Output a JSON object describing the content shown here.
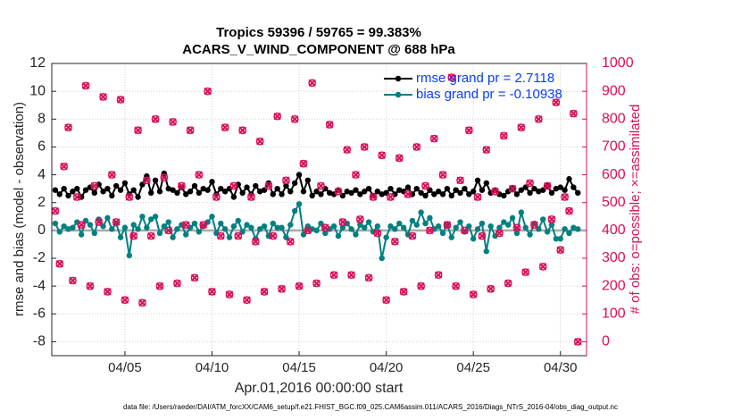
{
  "chart_data": {
    "type": "line",
    "title": "Tropics 59396 / 59765 = 99.383%",
    "subtitle": "ACARS_V_WIND_COMPONENT @ 688 hPa",
    "xlabel": "Apr.01,2016 00:00:00 start",
    "ylabel": "rmse and bias (model - observation)",
    "y2label": "# of obs: o=possible; ×=assimilated",
    "footnote": "data file: /Users/raeder/DAI/ATM_forcXX/CAM6_setup/f.e21.FHIST_BGC.f09_025.CAM6assim.011/ACARS_2016/Diags_NTrS_2016-04/obs_diag_output.nc",
    "xlim": [
      0.8,
      31.5
    ],
    "xticks": [
      {
        "value": 5,
        "label": "04/05"
      },
      {
        "value": 10,
        "label": "04/10"
      },
      {
        "value": 15,
        "label": "04/15"
      },
      {
        "value": 20,
        "label": "04/20"
      },
      {
        "value": 25,
        "label": "04/25"
      },
      {
        "value": 30,
        "label": "04/30"
      }
    ],
    "ylim": [
      -9,
      12
    ],
    "yticks": [
      -8,
      -6,
      -4,
      -2,
      0,
      2,
      4,
      6,
      8,
      10,
      12
    ],
    "y2lim": [
      -50,
      1000
    ],
    "y2ticks": [
      0,
      100,
      200,
      300,
      400,
      500,
      600,
      700,
      800,
      900,
      1000
    ],
    "grid": true,
    "legend": "northeast",
    "zero_line_color": "#aaaaaa",
    "y2color": "#d6115a",
    "x": [
      1,
      1.25,
      1.5,
      1.75,
      2,
      2.25,
      2.5,
      2.75,
      3,
      3.25,
      3.5,
      3.75,
      4,
      4.25,
      4.5,
      4.75,
      5,
      5.25,
      5.5,
      5.75,
      6,
      6.25,
      6.5,
      6.75,
      7,
      7.25,
      7.5,
      7.75,
      8,
      8.25,
      8.5,
      8.75,
      9,
      9.25,
      9.5,
      9.75,
      10,
      10.25,
      10.5,
      10.75,
      11,
      11.25,
      11.5,
      11.75,
      12,
      12.25,
      12.5,
      12.75,
      13,
      13.25,
      13.5,
      13.75,
      14,
      14.25,
      14.5,
      14.75,
      15,
      15.25,
      15.5,
      15.75,
      16,
      16.25,
      16.5,
      16.75,
      17,
      17.25,
      17.5,
      17.75,
      18,
      18.25,
      18.5,
      18.75,
      19,
      19.25,
      19.5,
      19.75,
      20,
      20.25,
      20.5,
      20.75,
      21,
      21.25,
      21.5,
      21.75,
      22,
      22.25,
      22.5,
      22.75,
      23,
      23.25,
      23.5,
      23.75,
      24,
      24.25,
      24.5,
      24.75,
      25,
      25.25,
      25.5,
      25.75,
      26,
      26.25,
      26.5,
      26.75,
      27,
      27.25,
      27.5,
      27.75,
      28,
      28.25,
      28.5,
      28.75,
      29,
      29.25,
      29.5,
      29.75,
      30,
      30.25,
      30.5,
      30.75,
      31
    ],
    "series": [
      {
        "name": "rmse grand pr = 2.7118",
        "color": "#000000",
        "marker": "dot",
        "linestyle": "solid",
        "in_legend": true,
        "values": [
          2.9,
          2.6,
          3.0,
          2.5,
          2.8,
          3.0,
          2.4,
          2.9,
          3.1,
          2.7,
          3.3,
          2.8,
          3.0,
          2.5,
          3.2,
          2.9,
          3.4,
          2.6,
          2.9,
          2.4,
          3.3,
          3.9,
          2.7,
          3.6,
          2.8,
          4.1,
          3.0,
          2.9,
          2.7,
          3.1,
          2.6,
          2.8,
          3.2,
          2.7,
          3.0,
          2.9,
          3.5,
          2.6,
          3.0,
          2.8,
          3.0,
          2.4,
          3.3,
          2.7,
          3.1,
          2.6,
          3.2,
          2.8,
          2.9,
          3.4,
          2.6,
          3.0,
          2.6,
          3.2,
          2.8,
          3.4,
          4.0,
          2.8,
          3.6,
          2.5,
          2.8,
          2.6,
          3.0,
          2.7,
          2.6,
          2.9,
          2.5,
          2.8,
          2.7,
          2.9,
          2.6,
          2.8,
          3.0,
          2.5,
          2.8,
          2.6,
          2.7,
          3.0,
          2.6,
          2.9,
          2.8,
          3.1,
          2.6,
          3.0,
          2.7,
          2.5,
          2.9,
          2.6,
          2.8,
          2.6,
          3.0,
          2.5,
          2.9,
          2.7,
          3.0,
          2.6,
          2.8,
          3.6,
          2.9,
          3.4,
          2.7,
          2.9,
          2.6,
          2.5,
          2.8,
          3.0,
          2.6,
          2.9,
          3.1,
          2.7,
          3.0,
          2.8,
          2.9,
          3.2,
          2.7,
          3.0,
          3.1,
          2.9,
          3.7,
          3.1,
          2.7
        ]
      },
      {
        "name": "bias grand pr = -0.10938",
        "color": "#008080",
        "marker": "dot",
        "linestyle": "solid",
        "in_legend": true,
        "values": [
          0.5,
          -0.1,
          0.3,
          0.1,
          0.2,
          0.6,
          -0.3,
          0.7,
          0.4,
          -0.2,
          0.8,
          0.3,
          0.9,
          0.1,
          0.5,
          -0.5,
          0.2,
          -1.8,
          0.4,
          0.1,
          1.0,
          0.2,
          0.8,
          1.0,
          -0.2,
          0.3,
          0.6,
          -0.5,
          0.1,
          0.4,
          -0.3,
          0.2,
          0.5,
          -0.1,
          0.3,
          0.6,
          1.0,
          -0.2,
          0.5,
          0.1,
          -0.5,
          0.3,
          0.7,
          -0.1,
          0.4,
          0.2,
          -0.6,
          0.1,
          0.3,
          -0.4,
          0.5,
          0.2,
          0.2,
          -0.5,
          0.4,
          1.4,
          1.9,
          -0.3,
          0.3,
          0.1,
          0.0,
          0.5,
          -0.2,
          0.1,
          0.3,
          -0.4,
          0.2,
          0.5,
          0.1,
          -0.3,
          0.4,
          0.2,
          0.6,
          -0.1,
          0.3,
          -2.0,
          -0.5,
          0.3,
          0.1,
          0.5,
          0.2,
          -0.3,
          0.7,
          0.4,
          1.3,
          0.5,
          0.9,
          0.1,
          0.3,
          -0.2,
          0.4,
          -0.5,
          0.2,
          0.6,
          -0.1,
          0.3,
          -0.6,
          0.1,
          0.5,
          -1.5,
          0.3,
          -0.4,
          0.2,
          0.6,
          0.4,
          0.9,
          -0.2,
          1.3,
          0.2,
          -0.3,
          0.5,
          0.1,
          0.8,
          -0.1,
          0.4,
          -0.6,
          -0.6,
          0.1,
          -0.2,
          0.2,
          0.1
        ]
      },
      {
        "name": "possible",
        "color": "#d6115a",
        "marker": "circle",
        "linestyle": "none",
        "axis": "y2",
        "in_legend": false,
        "values": [
          470,
          280,
          630,
          770,
          220,
          520,
          420,
          920,
          200,
          560,
          430,
          880,
          180,
          600,
          430,
          870,
          150,
          520,
          380,
          760,
          140,
          580,
          380,
          800,
          200,
          590,
          400,
          790,
          210,
          560,
          420,
          760,
          230,
          600,
          420,
          900,
          180,
          520,
          380,
          770,
          170,
          560,
          380,
          760,
          150,
          520,
          360,
          720,
          180,
          560,
          380,
          810,
          190,
          580,
          360,
          800,
          200,
          640,
          400,
          930,
          210,
          560,
          410,
          780,
          240,
          540,
          430,
          690,
          240,
          600,
          440,
          700,
          230,
          520,
          390,
          670,
          150,
          520,
          360,
          660,
          180,
          530,
          380,
          700,
          200,
          560,
          400,
          730,
          240,
          600,
          420,
          950,
          200,
          580,
          400,
          760,
          170,
          520,
          380,
          690,
          190,
          540,
          390,
          740,
          210,
          550,
          410,
          770,
          250,
          570,
          420,
          800,
          270,
          560,
          440,
          860,
          330,
          520,
          470,
          820,
          0
        ]
      },
      {
        "name": "assimilated",
        "color": "#d6115a",
        "marker": "cross",
        "linestyle": "none",
        "axis": "y2",
        "in_legend": false,
        "values": [
          470,
          280,
          630,
          770,
          220,
          520,
          420,
          920,
          200,
          560,
          430,
          880,
          180,
          600,
          430,
          870,
          150,
          520,
          380,
          760,
          140,
          580,
          380,
          800,
          200,
          590,
          400,
          790,
          210,
          560,
          420,
          760,
          230,
          600,
          420,
          900,
          180,
          520,
          380,
          770,
          170,
          560,
          380,
          760,
          150,
          520,
          360,
          720,
          180,
          560,
          380,
          810,
          190,
          580,
          360,
          800,
          200,
          640,
          400,
          930,
          210,
          560,
          410,
          780,
          240,
          540,
          430,
          690,
          240,
          600,
          440,
          700,
          230,
          520,
          390,
          670,
          150,
          520,
          360,
          660,
          180,
          530,
          380,
          700,
          200,
          560,
          400,
          730,
          240,
          600,
          420,
          950,
          200,
          580,
          400,
          760,
          170,
          520,
          380,
          690,
          190,
          540,
          390,
          740,
          210,
          550,
          410,
          770,
          250,
          570,
          420,
          800,
          270,
          560,
          440,
          860,
          330,
          520,
          470,
          820,
          0
        ]
      }
    ]
  }
}
